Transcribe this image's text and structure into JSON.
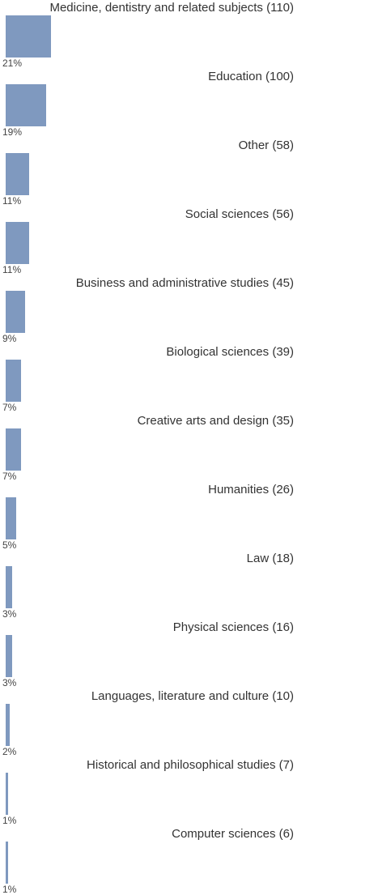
{
  "chart_data": {
    "type": "bar",
    "orientation": "horizontal",
    "color": "#7f99bf",
    "categories": [
      "Medicine, dentistry and related subjects (110)",
      "Education (100)",
      "Other (58)",
      "Social sciences (56)",
      "Business and administrative studies (45)",
      "Biological sciences (39)",
      "Creative arts and design (35)",
      "Humanities (26)",
      "Law (18)",
      "Physical sciences (16)",
      "Languages, literature and culture (10)",
      "Historical and philosophical studies (7)",
      "Computer sciences (6)"
    ],
    "values": [
      21,
      19,
      11,
      11,
      9,
      7,
      7,
      5,
      3,
      3,
      2,
      1,
      1
    ],
    "value_labels": [
      "21%",
      "19%",
      "11%",
      "11%",
      "9%",
      "7%",
      "7%",
      "5%",
      "3%",
      "3%",
      "2%",
      "1%",
      "1%"
    ]
  }
}
